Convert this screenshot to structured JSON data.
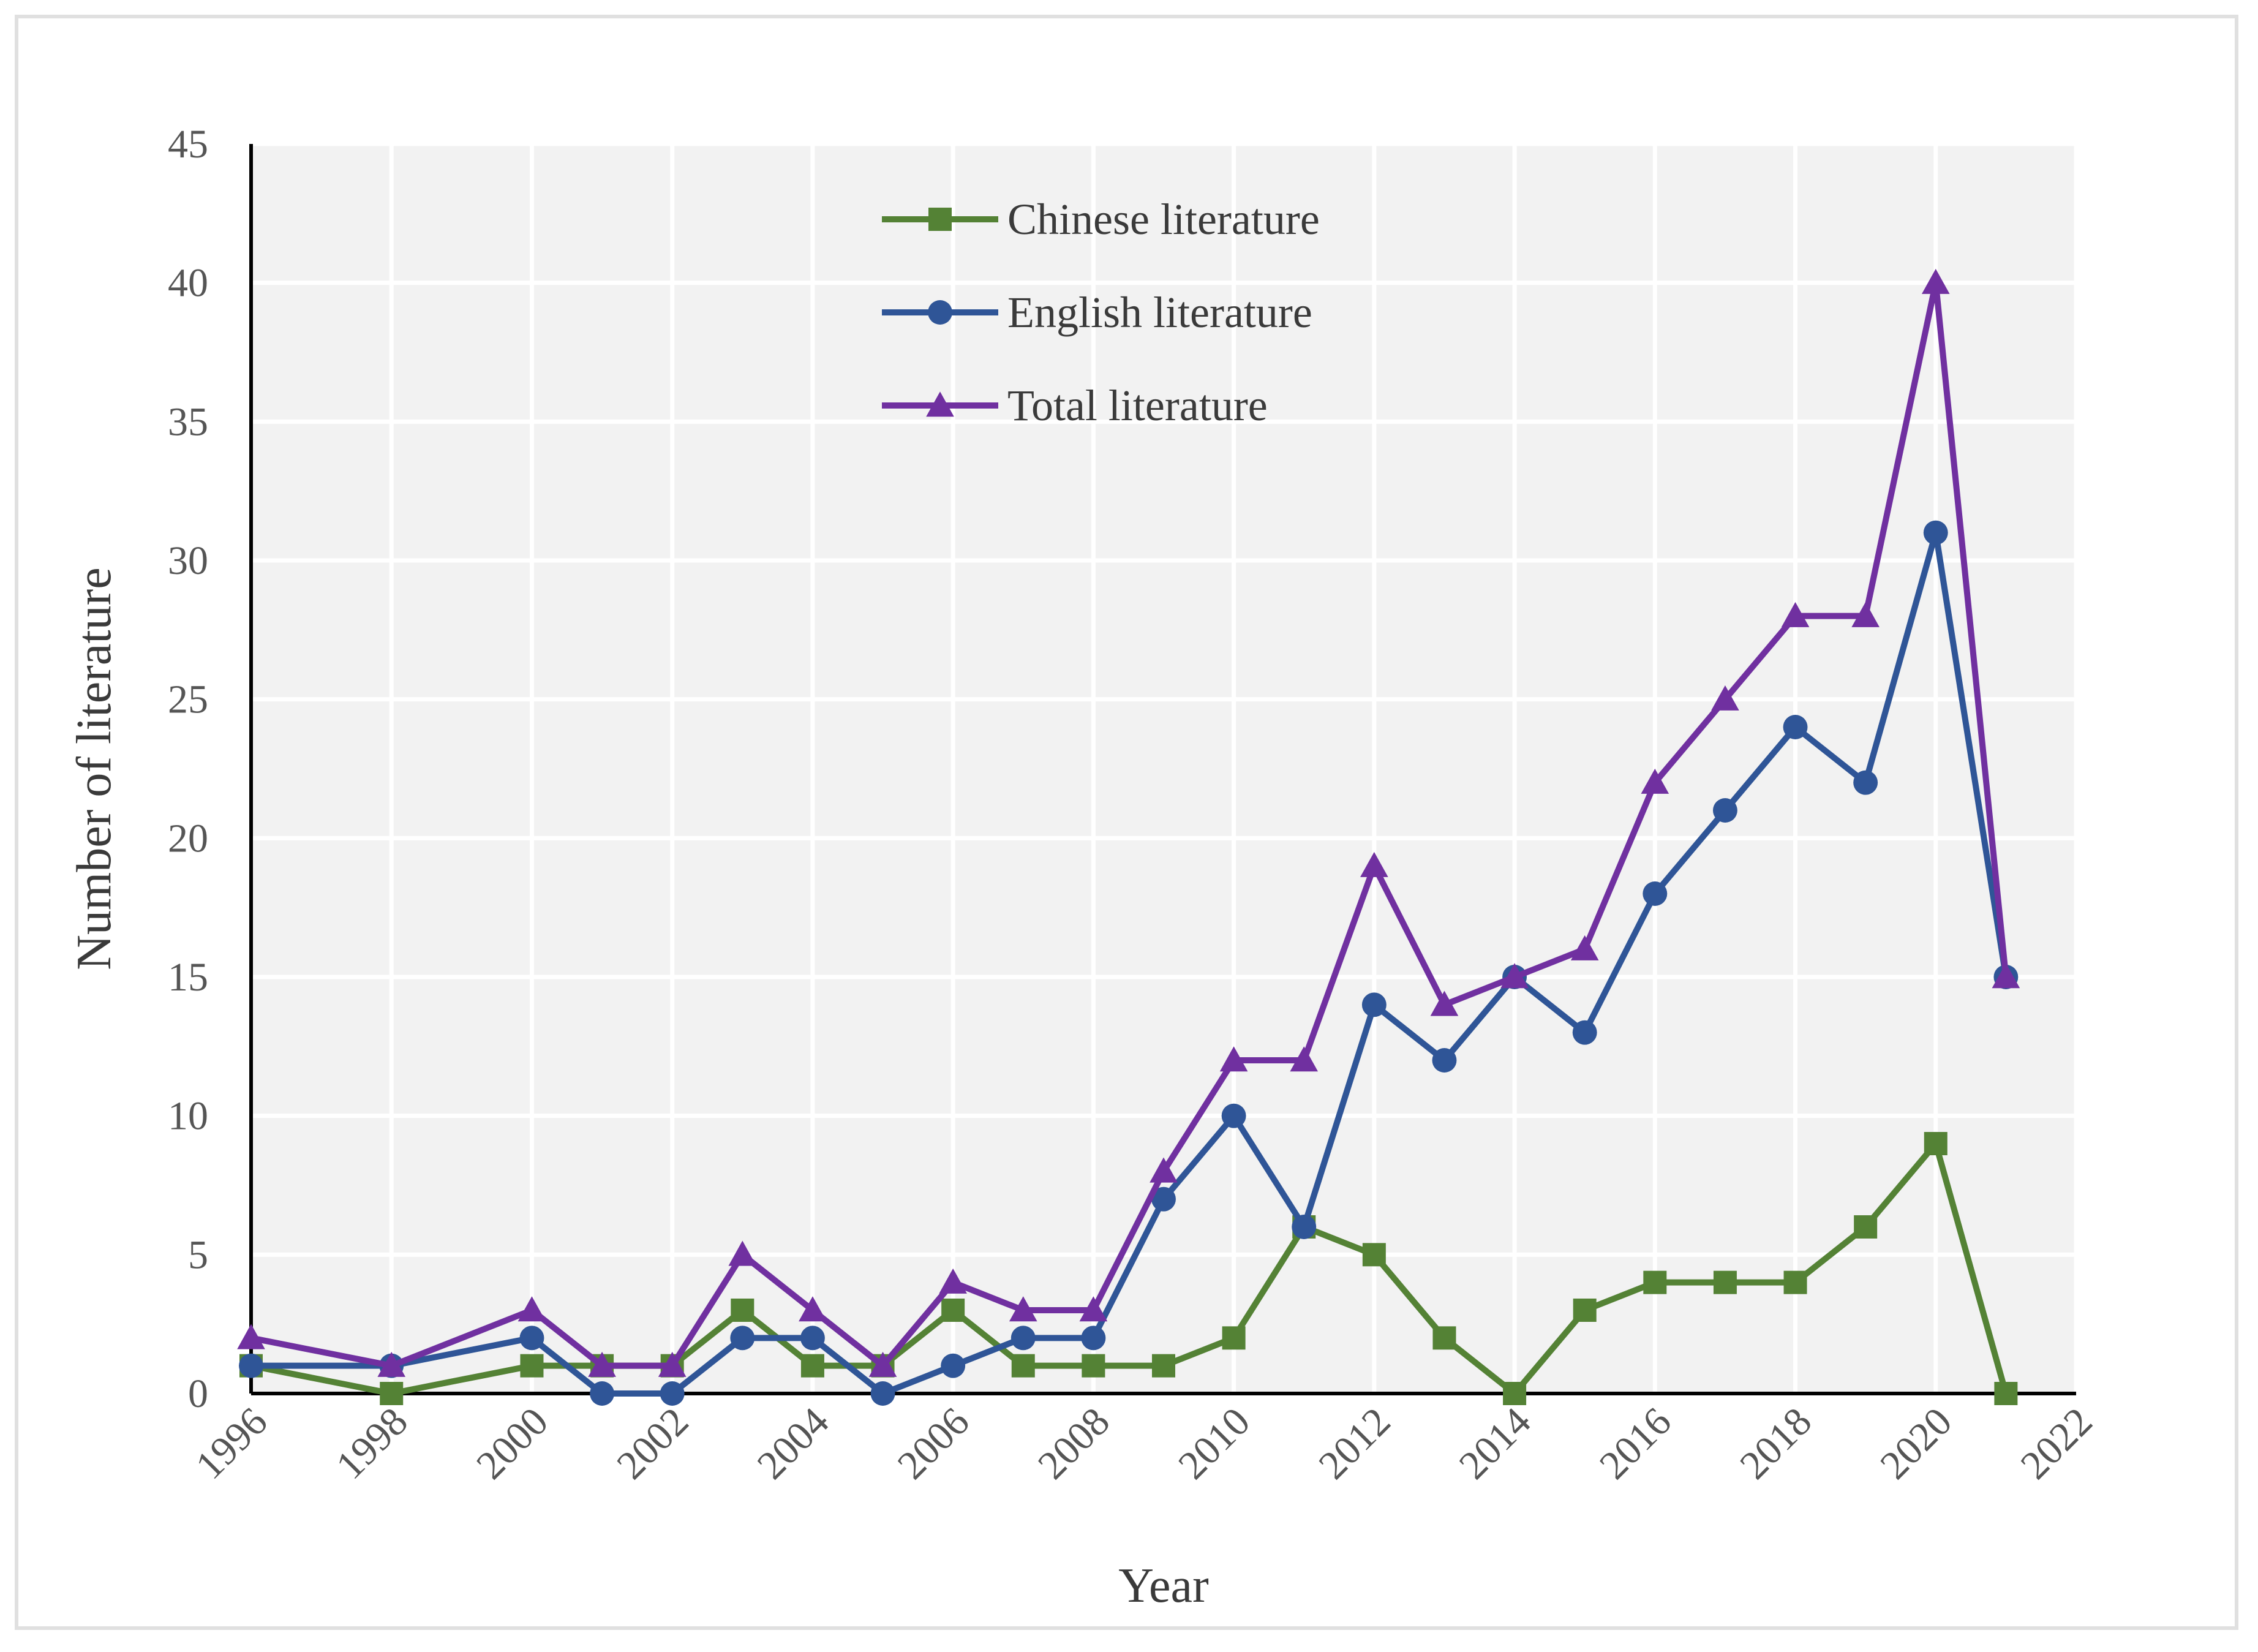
{
  "chart_data": {
    "type": "line",
    "xlabel": "Year",
    "ylabel": "Number of literature",
    "xlim": [
      1996,
      2022
    ],
    "ylim": [
      0,
      45
    ],
    "xticks": [
      1996,
      1998,
      2000,
      2002,
      2004,
      2006,
      2008,
      2010,
      2012,
      2014,
      2016,
      2018,
      2020,
      2022
    ],
    "yticks": [
      0,
      5,
      10,
      15,
      20,
      25,
      30,
      35,
      40,
      45
    ],
    "grid": true,
    "legend_position": "top-center",
    "series": [
      {
        "name": "Chinese literature",
        "color": "#548235",
        "marker": "square",
        "points": [
          [
            1996,
            1
          ],
          [
            1998,
            0
          ],
          [
            2000,
            1
          ],
          [
            2001,
            1
          ],
          [
            2002,
            1
          ],
          [
            2003,
            3
          ],
          [
            2004,
            1
          ],
          [
            2005,
            1
          ],
          [
            2006,
            3
          ],
          [
            2007,
            1
          ],
          [
            2008,
            1
          ],
          [
            2009,
            1
          ],
          [
            2010,
            2
          ],
          [
            2011,
            6
          ],
          [
            2012,
            5
          ],
          [
            2013,
            2
          ],
          [
            2014,
            0
          ],
          [
            2015,
            3
          ],
          [
            2016,
            4
          ],
          [
            2017,
            4
          ],
          [
            2018,
            4
          ],
          [
            2019,
            6
          ],
          [
            2020,
            9
          ],
          [
            2021,
            0
          ]
        ]
      },
      {
        "name": "English literature",
        "color": "#2f5597",
        "marker": "circle",
        "points": [
          [
            1996,
            1
          ],
          [
            1998,
            1
          ],
          [
            2000,
            2
          ],
          [
            2001,
            0
          ],
          [
            2002,
            0
          ],
          [
            2003,
            2
          ],
          [
            2004,
            2
          ],
          [
            2005,
            0
          ],
          [
            2006,
            1
          ],
          [
            2007,
            2
          ],
          [
            2008,
            2
          ],
          [
            2009,
            7
          ],
          [
            2010,
            10
          ],
          [
            2011,
            6
          ],
          [
            2012,
            14
          ],
          [
            2013,
            12
          ],
          [
            2014,
            15
          ],
          [
            2015,
            13
          ],
          [
            2016,
            18
          ],
          [
            2017,
            21
          ],
          [
            2018,
            24
          ],
          [
            2019,
            22
          ],
          [
            2020,
            31
          ],
          [
            2021,
            15
          ]
        ]
      },
      {
        "name": "Total literature",
        "color": "#7030a0",
        "marker": "triangle",
        "points": [
          [
            1996,
            2
          ],
          [
            1998,
            1
          ],
          [
            2000,
            3
          ],
          [
            2001,
            1
          ],
          [
            2002,
            1
          ],
          [
            2003,
            5
          ],
          [
            2004,
            3
          ],
          [
            2005,
            1
          ],
          [
            2006,
            4
          ],
          [
            2007,
            3
          ],
          [
            2008,
            3
          ],
          [
            2009,
            8
          ],
          [
            2010,
            12
          ],
          [
            2011,
            12
          ],
          [
            2012,
            19
          ],
          [
            2013,
            14
          ],
          [
            2014,
            15
          ],
          [
            2015,
            16
          ],
          [
            2016,
            22
          ],
          [
            2017,
            25
          ],
          [
            2018,
            28
          ],
          [
            2019,
            28
          ],
          [
            2020,
            40
          ],
          [
            2021,
            15
          ]
        ]
      }
    ]
  }
}
